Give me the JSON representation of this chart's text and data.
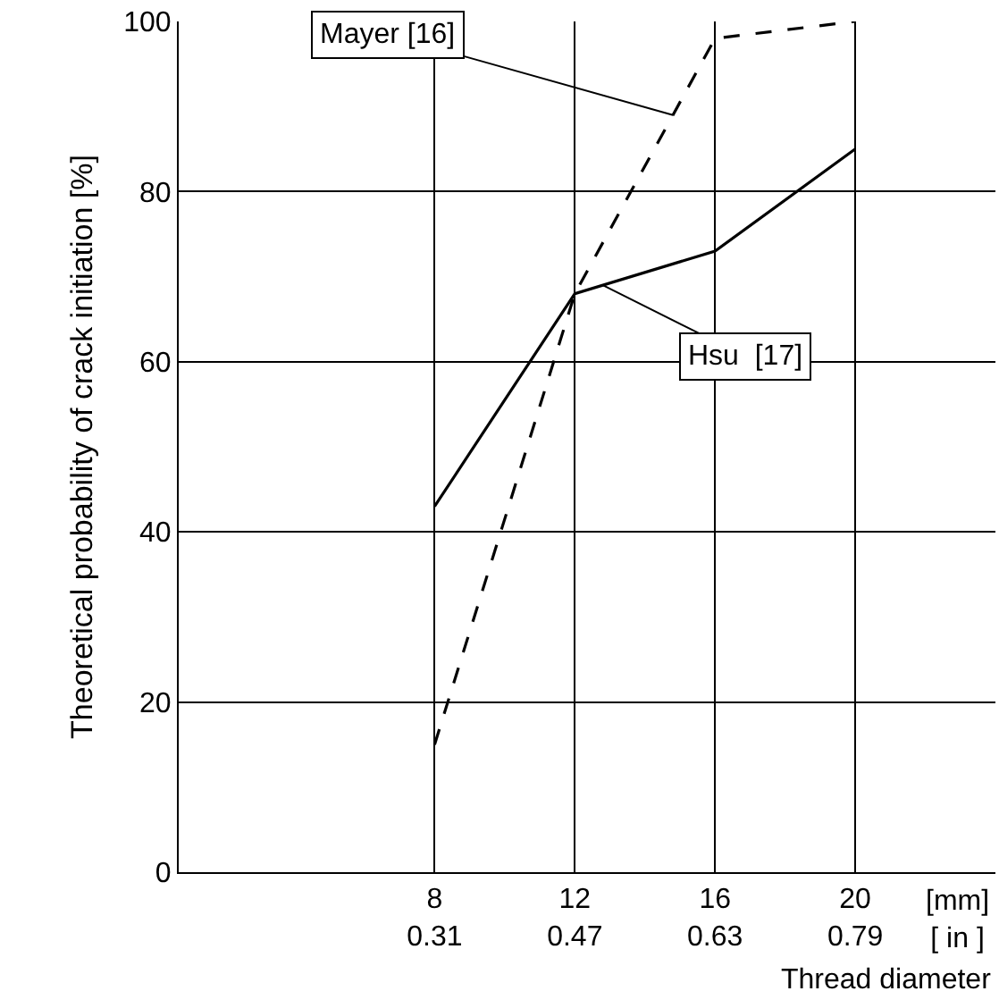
{
  "chart_data": {
    "type": "line",
    "xlabel": "Thread diameter",
    "ylabel": "Theoretical probability of crack initiation [%]",
    "x": [
      8,
      12,
      16,
      20
    ],
    "xlim": [
      0.7,
      24
    ],
    "xticks": [
      8,
      12,
      16,
      20
    ],
    "x2lim": [
      0.018,
      0.95
    ],
    "x2ticks": [
      0.31,
      0.47,
      0.63,
      0.79
    ],
    "ylim": [
      0,
      100
    ],
    "yticks": [
      0,
      20,
      40,
      60,
      80,
      100
    ],
    "annotations": [
      "[mm]\n[ in ]"
    ],
    "series": [
      {
        "name": "Mayer [16]",
        "color": "#000000",
        "line_style": "dashed",
        "values": [
          15,
          68,
          98,
          100
        ]
      },
      {
        "name": "Hsu  [17]",
        "color": "#000000",
        "line_style": "solid",
        "values": [
          43,
          68,
          73,
          85
        ]
      }
    ],
    "grid": true,
    "legend": false,
    "marker": "none"
  }
}
